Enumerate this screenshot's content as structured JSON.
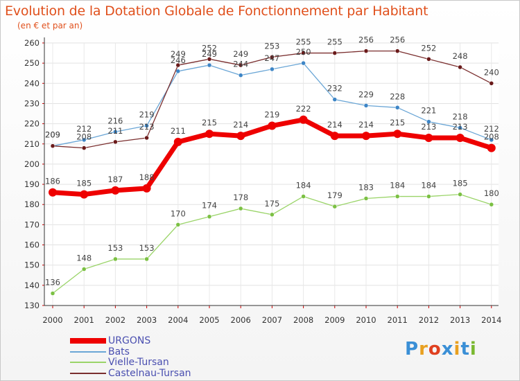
{
  "header": {
    "title": "Evolution de la Dotation Globale de Fonctionnement par Habitant",
    "subtitle": "(en € et par an)"
  },
  "brand": {
    "letters": [
      "P",
      "r",
      "o",
      "x",
      "i",
      "t",
      "i"
    ],
    "colors": [
      "#3a8fd6",
      "#e8a020",
      "#e04020",
      "#3a8fd6",
      "#e8a020",
      "#3a8fd6",
      "#7ab830"
    ]
  },
  "chart_data": {
    "type": "line",
    "title": "Evolution de la Dotation Globale de Fonctionnement par Habitant",
    "subtitle": "(en € et par an)",
    "x": [
      "2000",
      "2001",
      "2002",
      "2003",
      "2004",
      "2005",
      "2006",
      "2007",
      "2008",
      "2009",
      "2010",
      "2011",
      "2012",
      "2013",
      "2014"
    ],
    "ylim": [
      130,
      260
    ],
    "yticks": [
      130,
      140,
      150,
      160,
      170,
      180,
      190,
      200,
      210,
      220,
      230,
      240,
      250,
      260
    ],
    "grid": true,
    "legend_position": "bottom-left",
    "series": [
      {
        "name": "Vielle-Tursan",
        "color": "#9ad468",
        "dot": "#7bc043",
        "values": [
          136,
          148,
          153,
          153,
          170,
          174,
          178,
          175,
          184,
          179,
          183,
          184,
          184,
          185,
          180
        ]
      },
      {
        "name": "Bats",
        "color": "#6aa6d6",
        "dot": "#3d85c6",
        "values": [
          209,
          212,
          216,
          219,
          246,
          249,
          244,
          247,
          250,
          232,
          229,
          228,
          221,
          218,
          212
        ]
      },
      {
        "name": "Castelnau-Tursan",
        "color": "#7a2e2e",
        "dot": "#6a1a1a",
        "values": [
          209,
          208,
          211,
          213,
          249,
          252,
          249,
          253,
          255,
          255,
          256,
          256,
          252,
          248,
          240
        ]
      },
      {
        "name": "URGONS",
        "color": "#ee0000",
        "dot": "#ee0000",
        "values": [
          186,
          185,
          187,
          188,
          211,
          215,
          214,
          219,
          222,
          214,
          214,
          215,
          213,
          213,
          208
        ]
      }
    ]
  },
  "legend": [
    {
      "name": "URGONS",
      "color": "#ee0000",
      "thick": true
    },
    {
      "name": "Bats",
      "color": "#6aa6d6",
      "thick": false
    },
    {
      "name": "Vielle-Tursan",
      "color": "#9ad468",
      "thick": false
    },
    {
      "name": "Castelnau-Tursan",
      "color": "#7a2e2e",
      "thick": false
    }
  ]
}
